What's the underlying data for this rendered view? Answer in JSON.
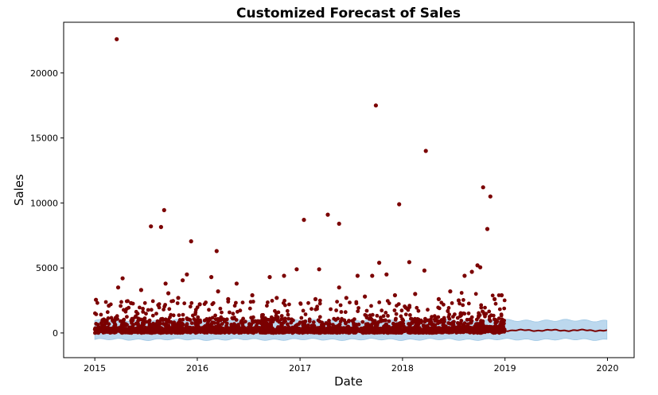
{
  "chart_data": {
    "type": "scatter",
    "title": "Customized Forecast of Sales",
    "xlabel": "Date",
    "ylabel": "Sales",
    "xlim": [
      "2014-09-12",
      "2020-04-05"
    ],
    "ylim": [
      -1900,
      23900
    ],
    "x_ticks": [
      "2015",
      "2016",
      "2017",
      "2018",
      "2019",
      "2020"
    ],
    "y_ticks": [
      "0",
      "5000",
      "10000",
      "15000",
      "20000"
    ],
    "grid": false,
    "legend": "none",
    "history_start": "2015-01-01",
    "history_end": "2018-12-31",
    "forecast_end": "2019-12-31",
    "forecast_level": 200,
    "interval": [
      -500,
      950
    ],
    "colors": {
      "points": "#7b0000",
      "forecast_line": "#7b0000",
      "interval": "#bcd8ee",
      "interval_edge": "#9cc6e4"
    },
    "series": [
      {
        "kind": "actual-sales-points",
        "points": [
          [
            "2015-03-20",
            22600
          ],
          [
            "2015-07-20",
            8200
          ],
          [
            "2015-08-25",
            8150
          ],
          [
            "2015-09-05",
            9450
          ],
          [
            "2015-12-10",
            7050
          ],
          [
            "2016-03-10",
            6300
          ],
          [
            "2017-01-15",
            8700
          ],
          [
            "2017-04-10",
            9100
          ],
          [
            "2017-05-20",
            8400
          ],
          [
            "2017-09-28",
            17500
          ],
          [
            "2017-12-20",
            9900
          ],
          [
            "2018-03-25",
            14000
          ],
          [
            "2018-10-15",
            11200
          ],
          [
            "2018-11-10",
            10500
          ],
          [
            "2018-10-30",
            8000
          ],
          [
            "2015-03-25",
            3500
          ],
          [
            "2015-04-10",
            4200
          ],
          [
            "2015-06-15",
            3300
          ],
          [
            "2015-09-10",
            3800
          ],
          [
            "2015-11-10",
            4050
          ],
          [
            "2015-11-25",
            4500
          ],
          [
            "2016-02-20",
            4300
          ],
          [
            "2016-03-15",
            3200
          ],
          [
            "2016-05-20",
            3800
          ],
          [
            "2016-09-15",
            4300
          ],
          [
            "2016-11-05",
            4400
          ],
          [
            "2016-12-20",
            4900
          ],
          [
            "2017-03-10",
            4900
          ],
          [
            "2017-05-20",
            3500
          ],
          [
            "2017-07-25",
            4400
          ],
          [
            "2017-09-15",
            4400
          ],
          [
            "2017-10-10",
            5400
          ],
          [
            "2017-11-05",
            4500
          ],
          [
            "2018-01-25",
            5450
          ],
          [
            "2018-03-20",
            4800
          ],
          [
            "2018-06-20",
            3200
          ],
          [
            "2018-08-10",
            4400
          ],
          [
            "2018-09-05",
            4700
          ],
          [
            "2018-09-25",
            5200
          ],
          [
            "2018-10-05",
            5050
          ],
          [
            "2015-01-05",
            2550
          ],
          [
            "2015-02-20",
            2100
          ],
          [
            "2015-05-10",
            2300
          ],
          [
            "2015-08-15",
            2150
          ],
          [
            "2015-09-20",
            3050
          ],
          [
            "2015-10-25",
            2700
          ],
          [
            "2016-01-10",
            2200
          ],
          [
            "2016-04-20",
            2600
          ],
          [
            "2016-07-15",
            2900
          ],
          [
            "2016-10-10",
            2700
          ],
          [
            "2017-02-25",
            2600
          ],
          [
            "2017-06-15",
            2700
          ],
          [
            "2017-08-20",
            2800
          ],
          [
            "2017-12-05",
            2900
          ],
          [
            "2018-02-15",
            3000
          ],
          [
            "2018-05-10",
            2600
          ],
          [
            "2018-07-20",
            2500
          ],
          [
            "2018-11-25",
            2600
          ],
          [
            "2018-12-20",
            2900
          ]
        ]
      }
    ]
  }
}
